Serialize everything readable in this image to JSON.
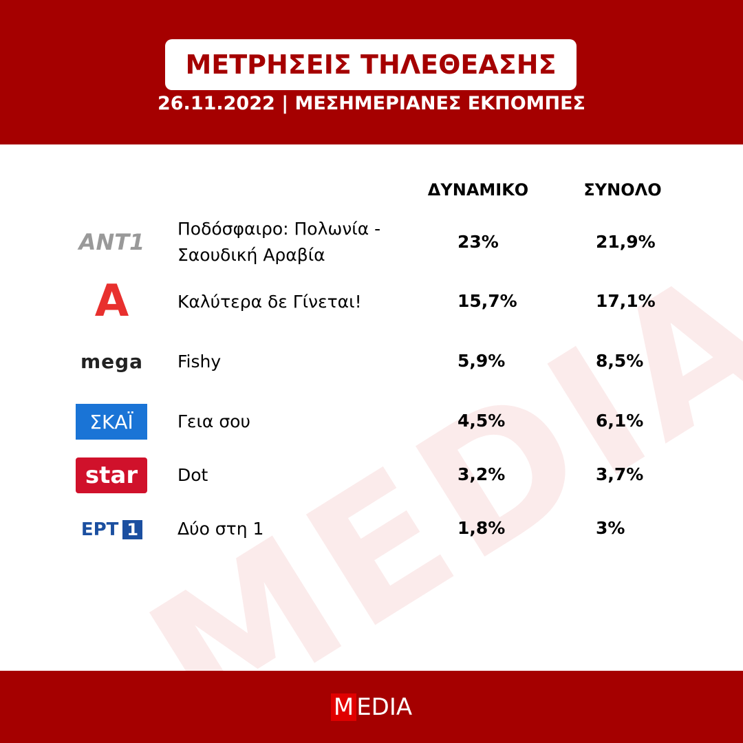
{
  "header": {
    "title": "ΜΕΤΡΗΣΕΙΣ ΤΗΛΕΘΕΑΣΗΣ",
    "subtitle": "26.11.2022 | ΜΕΣΗΜΕΡΙΑΝΕΣ ΕΚΠΟΜΠΕΣ"
  },
  "table": {
    "columns": [
      "ΔΥΝΑΜΙΚΟ",
      "ΣΥΝΟΛΟ"
    ],
    "rows": [
      {
        "logo": "ANT1",
        "show": "Ποδόσφαιρο: Πολωνία - Σαουδική Αραβία",
        "dynamic": "23%",
        "total": "21,9%"
      },
      {
        "logo": "Α",
        "show": "Καλύτερα δε Γίνεται!",
        "dynamic": "15,7%",
        "total": "17,1%"
      },
      {
        "logo": "mega",
        "show": "Fishy",
        "dynamic": "5,9%",
        "total": "8,5%"
      },
      {
        "logo": "ΣΚΑΪ",
        "show": "Γεια σου",
        "dynamic": "4,5%",
        "total": "6,1%"
      },
      {
        "logo": "star",
        "show": "Dot",
        "dynamic": "3,2%",
        "total": "3,7%"
      },
      {
        "logo": "ΕΡΤ",
        "logo_badge": "1",
        "show": "Δύο στη 1",
        "dynamic": "1,8%",
        "total": "3%"
      }
    ]
  },
  "watermark": "MEDIA",
  "footer": {
    "brand_initial": "M",
    "brand_rest": "EDIA"
  }
}
